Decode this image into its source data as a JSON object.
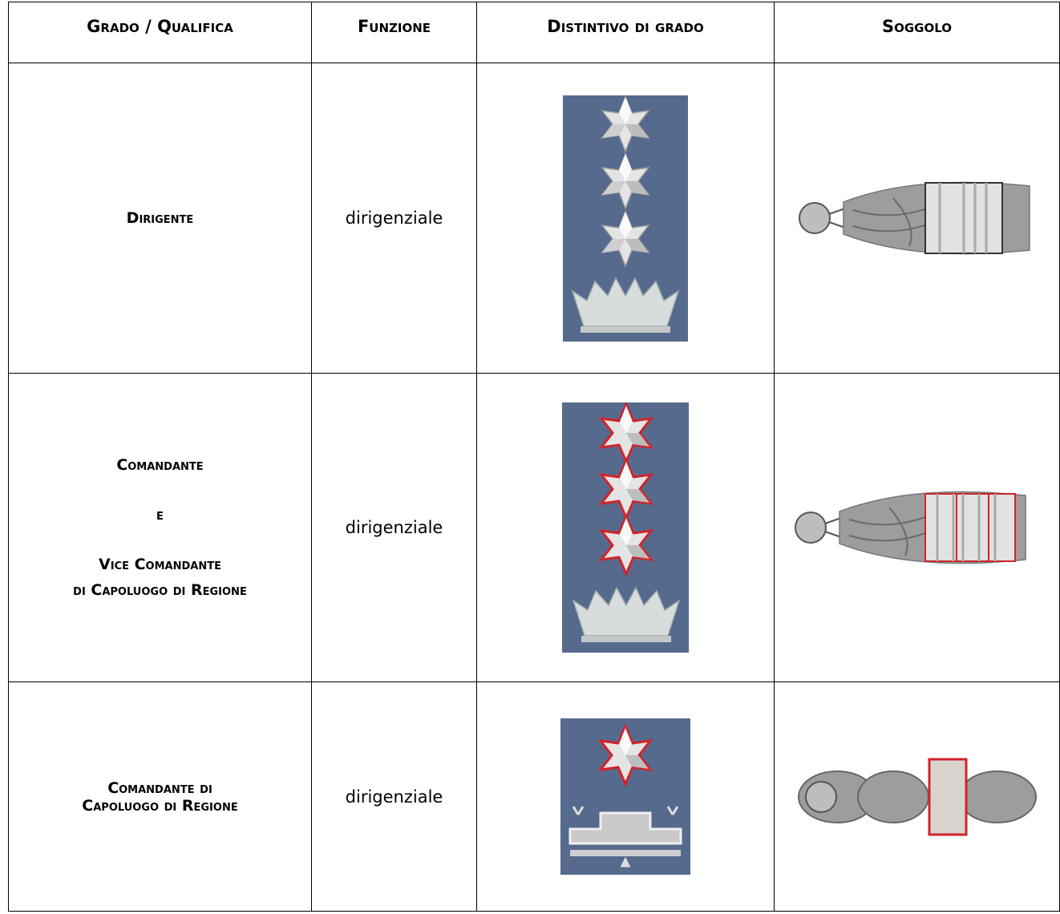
{
  "table": {
    "header": [
      "Grado / Qualifica",
      "Funzione",
      "Distintivo di grado",
      "Soggolo"
    ],
    "rows": [
      {
        "grado": [
          "Dirigente"
        ],
        "funzione": "dirigenziale"
      },
      {
        "grado": [
          "Comandante",
          "e",
          "Vice Comandante",
          "di Capoluogo di Regione"
        ],
        "funzione": "dirigenziale"
      },
      {
        "grado": [
          "Comandante di",
          "Capoluogo di Regione"
        ],
        "funzione": "dirigenziale"
      }
    ]
  }
}
